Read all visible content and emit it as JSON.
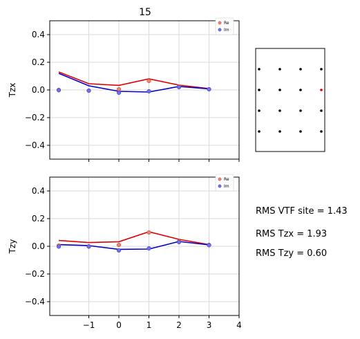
{
  "figure_title": "15",
  "colors": {
    "re": "#e00000",
    "im": "#0000cc",
    "re_marker": "#f08070",
    "im_marker": "#7070ee",
    "grid": "#d9d9d9",
    "station": "#000000",
    "station_active": "#e00000"
  },
  "legend": {
    "re_label": "Re",
    "im_label": "Im"
  },
  "chart_data": [
    {
      "type": "line",
      "name": "tzx-panel",
      "ylabel": "Tzx",
      "xlabel": "",
      "xlim": [
        -2.3,
        4
      ],
      "ylim": [
        -0.5,
        0.5
      ],
      "xticks": [
        -1,
        0,
        1,
        2,
        3,
        4
      ],
      "xtick_labels": [
        "",
        "",
        "",
        "",
        "",
        ""
      ],
      "yticks": [
        0.4,
        0.2,
        0.0,
        -0.2,
        -0.4
      ],
      "ytick_labels": [
        "0.4",
        "0.2",
        "0.0",
        "−0.2",
        "−0.4"
      ],
      "grid": true,
      "x": [
        -2,
        -1,
        0,
        1,
        2,
        3
      ],
      "series": [
        {
          "name": "Re",
          "kind": "line",
          "values": [
            0.13,
            0.045,
            0.033,
            0.08,
            0.035,
            0.01
          ]
        },
        {
          "name": "Im",
          "kind": "line",
          "values": [
            0.12,
            0.03,
            -0.01,
            -0.015,
            0.025,
            0.008
          ]
        },
        {
          "name": "Re",
          "kind": "points",
          "values": [
            0.0,
            -0.005,
            0.005,
            0.065,
            0.025,
            0.005
          ]
        },
        {
          "name": "Im",
          "kind": "points",
          "values": [
            -0.002,
            -0.005,
            -0.02,
            -0.01,
            0.02,
            0.005
          ]
        }
      ]
    },
    {
      "type": "line",
      "name": "tzy-panel",
      "ylabel": "Tzy",
      "xlabel": "",
      "xlim": [
        -2.3,
        4
      ],
      "ylim": [
        -0.5,
        0.5
      ],
      "xticks": [
        -1,
        0,
        1,
        2,
        3,
        4
      ],
      "xtick_labels": [
        "−1",
        "0",
        "1",
        "2",
        "3",
        "4"
      ],
      "yticks": [
        0.4,
        0.2,
        0.0,
        -0.2,
        -0.4
      ],
      "ytick_labels": [
        "0.4",
        "0.2",
        "0.0",
        "−0.2",
        "−0.4"
      ],
      "grid": true,
      "x": [
        -2,
        -1,
        0,
        1,
        2,
        3
      ],
      "series": [
        {
          "name": "Re",
          "kind": "line",
          "values": [
            0.042,
            0.027,
            0.033,
            0.105,
            0.05,
            0.012
          ]
        },
        {
          "name": "Im",
          "kind": "line",
          "values": [
            0.012,
            0.005,
            -0.022,
            -0.02,
            0.035,
            0.01
          ]
        },
        {
          "name": "Re",
          "kind": "points",
          "values": [
            0.005,
            0.0,
            0.01,
            0.1,
            0.035,
            0.01
          ]
        },
        {
          "name": "Im",
          "kind": "points",
          "values": [
            -0.002,
            -0.002,
            -0.03,
            -0.015,
            0.03,
            0.008
          ]
        }
      ]
    }
  ],
  "station_grid": {
    "rows": 4,
    "cols": 4,
    "active_row": 1,
    "active_col": 3
  },
  "rms": {
    "vtf_site": "RMS VTF site = 1.43",
    "tzx": "RMS Tzx  = 1.93",
    "tzy": "RMS Tzy  = 0.60"
  }
}
